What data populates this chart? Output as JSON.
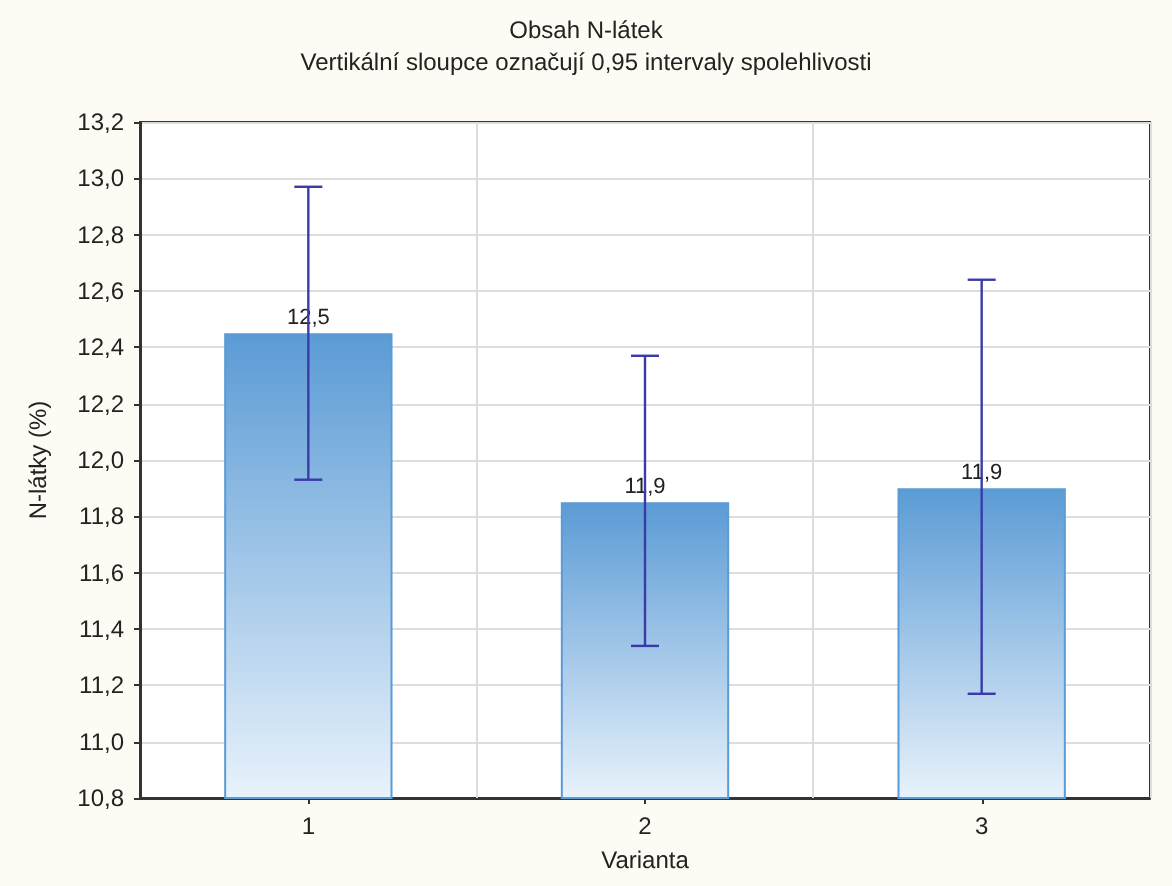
{
  "chart_data": {
    "type": "bar",
    "title": "Obsah N-látek",
    "subtitle": "Vertikální sloupce označují 0,95 intervaly spolehlivosti",
    "xlabel": "Varianta",
    "ylabel": "N-látky (%)",
    "categories": [
      "1",
      "2",
      "3"
    ],
    "series": [
      {
        "color": "#5b9bd5",
        "values": [
          12.45,
          11.85,
          11.9
        ],
        "value_labels": [
          "12,5",
          "11,9",
          "11,9"
        ],
        "errors": [
          [
            11.93,
            12.97
          ],
          [
            11.34,
            12.37
          ],
          [
            11.17,
            12.64
          ]
        ]
      }
    ],
    "ylim": [
      10.8,
      13.2
    ],
    "yticks": [
      {
        "value": 10.8,
        "label": "10,8"
      },
      {
        "value": 11.0,
        "label": "11,0"
      },
      {
        "value": 11.2,
        "label": "11,2"
      },
      {
        "value": 11.4,
        "label": "11,4"
      },
      {
        "value": 11.6,
        "label": "11,6"
      },
      {
        "value": 11.8,
        "label": "11,8"
      },
      {
        "value": 12.0,
        "label": "12,0"
      },
      {
        "value": 12.2,
        "label": "12,2"
      },
      {
        "value": 12.4,
        "label": "12,4"
      },
      {
        "value": 12.6,
        "label": "12,6"
      },
      {
        "value": 12.8,
        "label": "12,8"
      },
      {
        "value": 13.0,
        "label": "13,0"
      },
      {
        "value": 13.2,
        "label": "13,2"
      }
    ],
    "grid": true
  }
}
